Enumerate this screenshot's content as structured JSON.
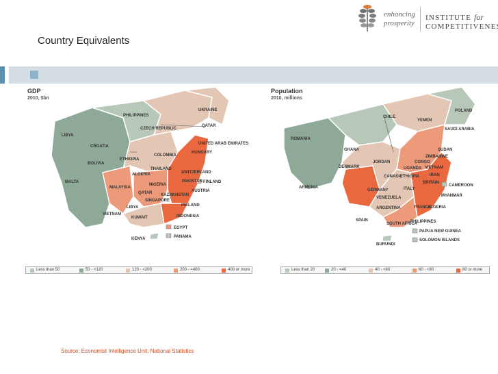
{
  "slide": {
    "title": "Country Equivalents",
    "source": "Source: Economist Intelligence Unit, National Statistics"
  },
  "logo": {
    "tagline_1": "enhancing",
    "tagline_2": "prosperity",
    "institute_1": "INSTITUTE",
    "institute_for": "for",
    "institute_2": "COMPETITIVENESS"
  },
  "colors": {
    "band": "#d3dde3",
    "accent_blue": "#5a8fb0",
    "tier_1": "#b7c8b9",
    "tier_2": "#8ea998",
    "tier_3": "#e3c6b4",
    "tier_4": "#ed9a7b",
    "tier_5": "#e9683f",
    "source_text": "#cc4a1e"
  },
  "maps": [
    {
      "title": "GDP",
      "subtitle": "2010, $bn",
      "legend": [
        "Less than 50",
        "50 - <120",
        "120 - <200",
        "200 - <400",
        "400 or more"
      ],
      "labels": [
        "UKRAINE",
        "PHILIPPINES",
        "QATAR",
        "CZECH REPUBLIC",
        "LIBYA",
        "UNITED ARAB EMIRATES",
        "CROATIA",
        "HUNGARY",
        "COLOMBIA",
        "ETHIOPIA",
        "BOLIVIA",
        "SWITZERLAND",
        "THAILAND",
        "ALGERIA",
        "PAKISTAN",
        "MALTA",
        "MALAYSIA",
        "NIGERIA",
        "FINLAND",
        "QATAR",
        "KAZAKHSTAN",
        "AUSTRIA",
        "SINGAPORE",
        "LIBYA",
        "IRELAND",
        "VIETNAM",
        "KUWAIT",
        "INDONESIA",
        "EGYPT",
        "PANAMA",
        "KENYA"
      ]
    },
    {
      "title": "Population",
      "subtitle": "2010, millions",
      "legend": [
        "Less than 20",
        "20 - <40",
        "40 - <60",
        "60 - <80",
        "80 or more"
      ],
      "labels": [
        "POLAND",
        "CHILE",
        "YEMEN",
        "SAUDI ARABIA",
        "ROMANIA",
        "GHANA",
        "SUDAN",
        "ZIMBABWE",
        "JORDAN",
        "CONGO",
        "DENMARK",
        "UGANDA",
        "VIETNAM",
        "CANADA",
        "ETHIOPIA",
        "IRAN",
        "BRITAIN",
        "CAMEROON",
        "ARMENIA",
        "GERMANY",
        "ITALY",
        "VENEZUELA",
        "MYANMAR",
        "ARGENTINA",
        "FRANCE",
        "ALGERIA",
        "SPAIN",
        "SOUTH AFRICA",
        "PHILIPPINES",
        "PAPUA NEW GUINEA",
        "BURUNDI",
        "SOLOMON ISLANDS"
      ]
    }
  ]
}
